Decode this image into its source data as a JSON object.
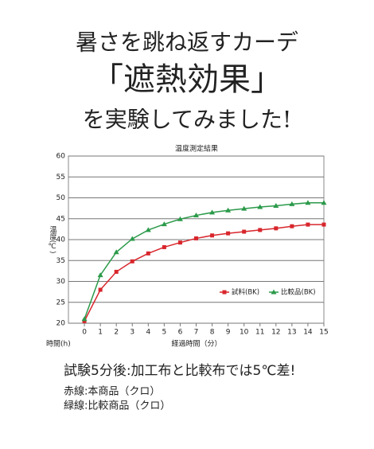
{
  "header": {
    "line1": "暑さを跳ね返すカーデ",
    "line2": "「遮熱効果」",
    "line3": "を実験してみました!"
  },
  "chart_data": {
    "type": "line",
    "title": "温度測定結果",
    "y_label": "温度(℃)",
    "x_label": "経過時間（分）",
    "x_unit_label": "時間(h)",
    "x": [
      0,
      1,
      2,
      3,
      4,
      5,
      6,
      7,
      8,
      9,
      10,
      11,
      12,
      13,
      14,
      15
    ],
    "series": [
      {
        "name": "試料(BK)",
        "color": "#d8262c",
        "marker": "square",
        "values": [
          20.5,
          28,
          32.3,
          34.8,
          36.7,
          38.2,
          39.3,
          40.3,
          41,
          41.5,
          41.9,
          42.3,
          42.7,
          43.2,
          43.6,
          43.6
        ]
      },
      {
        "name": "比較品(BK)",
        "color": "#2b9a4a",
        "marker": "triangle",
        "values": [
          21,
          31.5,
          37,
          40.2,
          42.3,
          43.7,
          44.9,
          45.8,
          46.5,
          47,
          47.4,
          47.8,
          48.1,
          48.5,
          48.8,
          48.8
        ]
      }
    ],
    "xlim": [
      -1,
      15
    ],
    "xticks": [
      0,
      1,
      2,
      3,
      4,
      5,
      6,
      7,
      8,
      9,
      10,
      11,
      12,
      13,
      14,
      15
    ],
    "ylim": [
      20,
      60
    ],
    "yticks": [
      20,
      25,
      30,
      35,
      40,
      45,
      50,
      55,
      60
    ],
    "grid": true,
    "legend": "lower right"
  },
  "notes": {
    "summary": "試験5分後:加工布と比較布では5℃差!",
    "red": "赤線:本商品（クロ）",
    "green": "緑線:比較商品（クロ）"
  }
}
